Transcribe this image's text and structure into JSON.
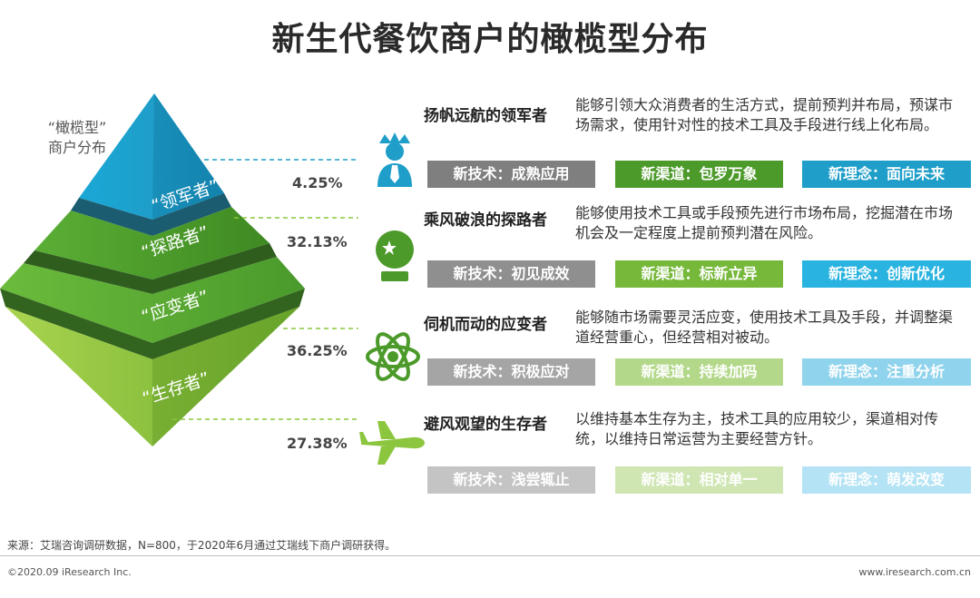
{
  "title": "新生代餐饮商户的橄榄型分布",
  "diagram_label": [
    "“橄榄型”",
    "商户分布"
  ],
  "colors": {
    "teal": "#1e9ec9",
    "green_dark": "#4c9a2a",
    "green_light": "#8cc63f",
    "gray": "#9e9e9e"
  },
  "segments": [
    {
      "tier_label": "“领军者”",
      "percent": "4.25%",
      "title": "扬帆远航的领军者",
      "description": "能够引领大众消费者的生活方式，提前预判并布局，预谋市场需求，使用针对性的技术工具及手段进行线上化布局。",
      "icon": "crown-person-icon",
      "tags": [
        "新技术：成熟应用",
        "新渠道：包罗万象",
        "新理念：面向未来"
      ]
    },
    {
      "tier_label": "“探路者”",
      "percent": "32.13%",
      "title": "乘风破浪的探路者",
      "description": "能够使用技术工具或手段预先进行市场布局，挖掘潜在市场机会及一定程度上提前预判潜在风险。",
      "icon": "crystal-ball-icon",
      "tags": [
        "新技术：初见成效",
        "新渠道：标新立异",
        "新理念：创新优化"
      ]
    },
    {
      "tier_label": "“应变者”",
      "percent": "36.25%",
      "title": "伺机而动的应变者",
      "description": "能够随市场需要灵活应变，使用技术工具及手段，并调整渠道经营重心，但经营相对被动。",
      "icon": "atom-icon",
      "tags": [
        "新技术：积极应对",
        "新渠道：持续加码",
        "新理念：注重分析"
      ]
    },
    {
      "tier_label": "“生存者”",
      "percent": "27.38%",
      "title": "避风观望的生存者",
      "description": "以维持基本生存为主，技术工具的应用较少，渠道相对传统，以维持日常运营为主要经营方针。",
      "icon": "airplane-icon",
      "tags": [
        "新技术：浅尝辄止",
        "新渠道：相对单一",
        "新理念：萌发改变"
      ]
    }
  ],
  "footer": {
    "source": "来源：艾瑞咨询调研数据，N=800，于2020年6月通过艾瑞线下商户调研获得。",
    "copyright": "©2020.09 iResearch Inc.",
    "website": "www.iresearch.com.cn"
  }
}
